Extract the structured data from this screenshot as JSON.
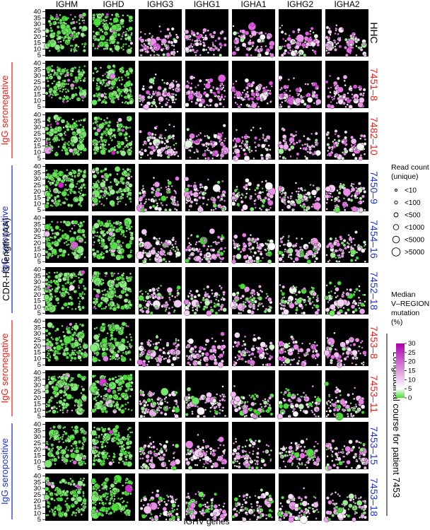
{
  "chart_data": {
    "type": "scatter",
    "subtype": "bubble-grid (small multiples)",
    "columns": [
      "IGHM",
      "IGHD",
      "IGHG3",
      "IGHG1",
      "IGHA1",
      "IGHG2",
      "IGHA2"
    ],
    "rows": [
      {
        "label": "HHC",
        "color": "#000000"
      },
      {
        "label": "7451–8",
        "color": "#e8251f"
      },
      {
        "label": "7482–10",
        "color": "#e8251f"
      },
      {
        "label": "7450–9",
        "color": "#2233cc"
      },
      {
        "label": "7454–16",
        "color": "#2233cc"
      },
      {
        "label": "7452–18",
        "color": "#2233cc"
      },
      {
        "label": "7453–8",
        "color": "#e8251f"
      },
      {
        "label": "7453–11",
        "color": "#e8251f"
      },
      {
        "label": "7453–15",
        "color": "#2233cc"
      },
      {
        "label": "7453–18",
        "color": "#2233cc"
      }
    ],
    "y_axis": {
      "label": "CDR-H3 length (AA)",
      "ticks": [
        5,
        10,
        15,
        20,
        25,
        30,
        35,
        40
      ],
      "range": [
        4,
        42
      ]
    },
    "x_axis": {
      "label": "IGHV genes"
    },
    "groups": [
      {
        "label": "IgG seronegative",
        "color": "#e8251f",
        "rows": [
          1,
          2
        ]
      },
      {
        "label": "IgG seropositive",
        "color": "#2233cc",
        "rows": [
          3,
          4,
          5
        ]
      },
      {
        "label": "IgG seronegative",
        "color": "#e8251f",
        "rows": [
          6,
          7
        ]
      },
      {
        "label": "IgG seropositive",
        "color": "#2233cc",
        "rows": [
          8,
          9
        ]
      }
    ],
    "longitudinal_label": "Longitudinal course for patient 7453",
    "size_legend": {
      "title": [
        "Read count",
        "(unique)"
      ],
      "entries": [
        "<10",
        "<100",
        "<500",
        "<1000",
        "<5000",
        ">5000"
      ]
    },
    "color_legend": {
      "title": [
        "Median",
        "V–REGION",
        "mutation",
        "(%)"
      ],
      "ticks": [
        0,
        5,
        10,
        15,
        20,
        25,
        30
      ],
      "range": [
        0,
        30
      ],
      "colors": {
        "low": "#44dd33",
        "mid": "#ffffff",
        "high": "#cc00cc"
      }
    }
  }
}
